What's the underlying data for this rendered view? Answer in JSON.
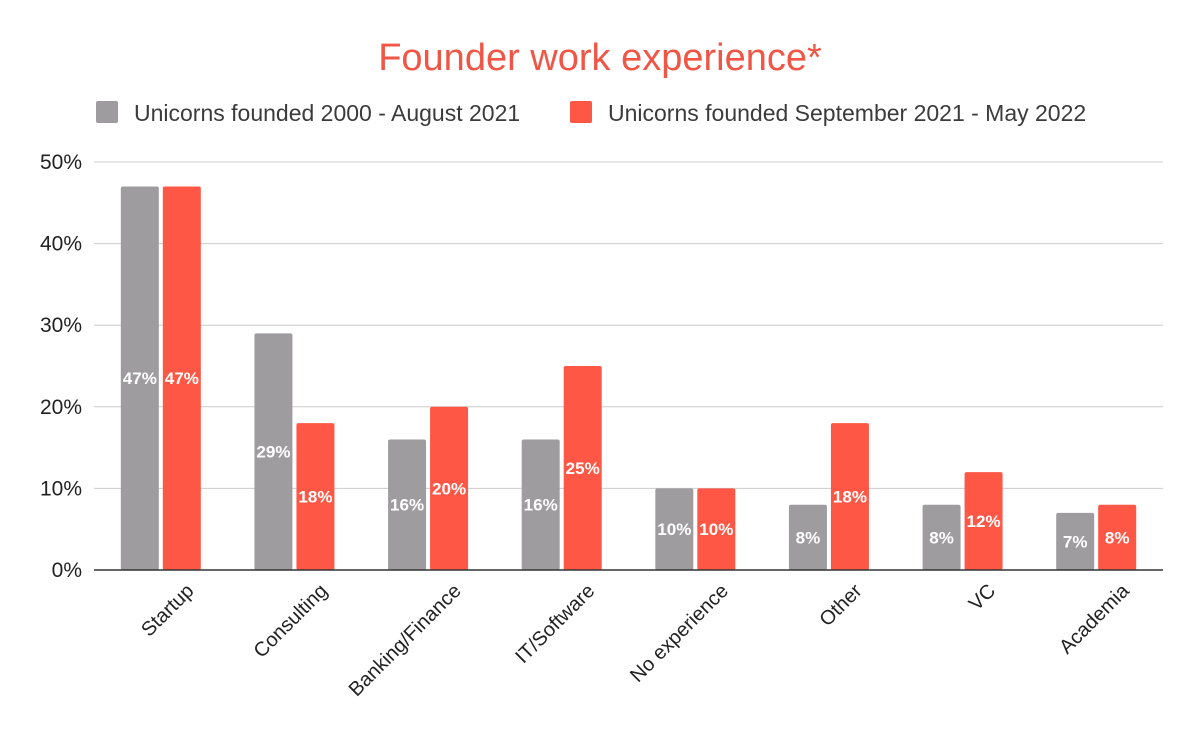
{
  "chart_data": {
    "type": "bar",
    "title": "Founder work experience*",
    "categories": [
      "Startup",
      "Consulting",
      "Banking/Finance",
      "IT/Software",
      "No experience",
      "Other",
      "VC",
      "Academia"
    ],
    "series": [
      {
        "name": "Unicorns founded 2000 - August 2021",
        "values": [
          47,
          29,
          16,
          16,
          10,
          8,
          8,
          7
        ],
        "labels": [
          "47%",
          "29%",
          "16%",
          "16%",
          "10%",
          "8%",
          "8%",
          "7%"
        ],
        "color": "#9e9c9f"
      },
      {
        "name": "Unicorns founded September 2021 - May 2022",
        "values": [
          47,
          18,
          20,
          25,
          10,
          18,
          12,
          8
        ],
        "labels": [
          "47%",
          "18%",
          "20%",
          "25%",
          "10%",
          "18%",
          "12%",
          "8%"
        ],
        "color": "#ff5745"
      }
    ],
    "ylim": [
      0,
      50
    ],
    "yticks": [
      0,
      10,
      20,
      30,
      40,
      50
    ],
    "ytick_labels": [
      "0%",
      "10%",
      "20%",
      "30%",
      "40%",
      "50%"
    ],
    "grid": true,
    "legend_position": "top",
    "colors": {
      "title": "#f15545",
      "grid": "#cccccc",
      "axis": "#333333"
    }
  }
}
